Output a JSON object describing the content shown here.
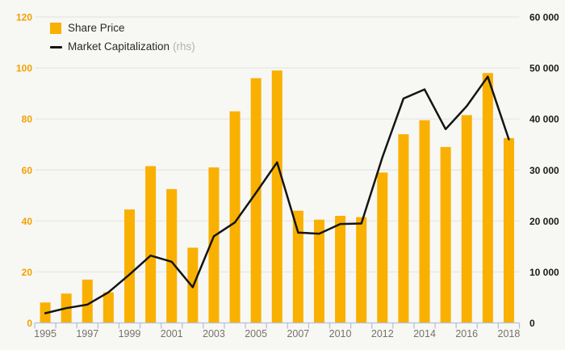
{
  "chart_data": {
    "type": "bar+line",
    "categories": [
      "1995",
      "1996",
      "1997",
      "1998",
      "1999",
      "2000",
      "2001",
      "2002",
      "2003",
      "2004",
      "2005",
      "2006",
      "2007",
      "2008",
      "2010",
      "2011",
      "2012",
      "2013",
      "2014",
      "2015",
      "2016",
      "2017",
      "2018"
    ],
    "x_tick_labels": [
      "1995",
      "1997",
      "1999",
      "2001",
      "2003",
      "2005",
      "2007",
      "2010",
      "2012",
      "2014",
      "2016",
      "2018"
    ],
    "series": [
      {
        "name": "Share Price",
        "type": "bar",
        "axis": "left",
        "color": "#F9B000",
        "values": [
          8,
          11.5,
          17,
          12,
          44.5,
          61.5,
          52.5,
          29.5,
          61,
          83,
          96,
          99,
          44,
          40.5,
          42,
          41.5,
          59,
          74,
          79.5,
          69,
          81.5,
          98,
          72.5
        ]
      },
      {
        "name": "Market Capitalization",
        "type": "line",
        "axis": "right",
        "axis_suffix": "(rhs)",
        "color": "#141414",
        "values": [
          1900,
          2900,
          3600,
          6000,
          9500,
          13200,
          12000,
          7000,
          17000,
          19700,
          25500,
          31500,
          17700,
          17500,
          19400,
          19500,
          32500,
          44000,
          45800,
          38000,
          42500,
          48300,
          36000
        ]
      }
    ],
    "left_axis": {
      "min": 0,
      "max": 120,
      "color": "#F2A100",
      "ticks": [
        {
          "label": "0",
          "value": 0
        },
        {
          "label": "20",
          "value": 20
        },
        {
          "label": "40",
          "value": 40
        },
        {
          "label": "60",
          "value": 60
        },
        {
          "label": "80",
          "value": 80
        },
        {
          "label": "100",
          "value": 100
        },
        {
          "label": "120",
          "value": 120
        }
      ]
    },
    "right_axis": {
      "min": 0,
      "max": 60000,
      "color": "#1c1c1c",
      "ticks": [
        {
          "label": "0",
          "value": 0
        },
        {
          "label": "10 000",
          "value": 10000
        },
        {
          "label": "20 000",
          "value": 20000
        },
        {
          "label": "30 000",
          "value": 30000
        },
        {
          "label": "40 000",
          "value": 40000
        },
        {
          "label": "50 000",
          "value": 50000
        },
        {
          "label": "60 000",
          "value": 60000
        }
      ]
    },
    "grid": true,
    "legend_position": "top-left",
    "style": {
      "background": "#f7f7f4",
      "gridline_color": "#e7e6e1",
      "axis_line_color": "#b6c2d8",
      "x_label_color": "#757169",
      "rhs_suffix_color": "#b4b2ad",
      "line_width": 2.5
    }
  }
}
